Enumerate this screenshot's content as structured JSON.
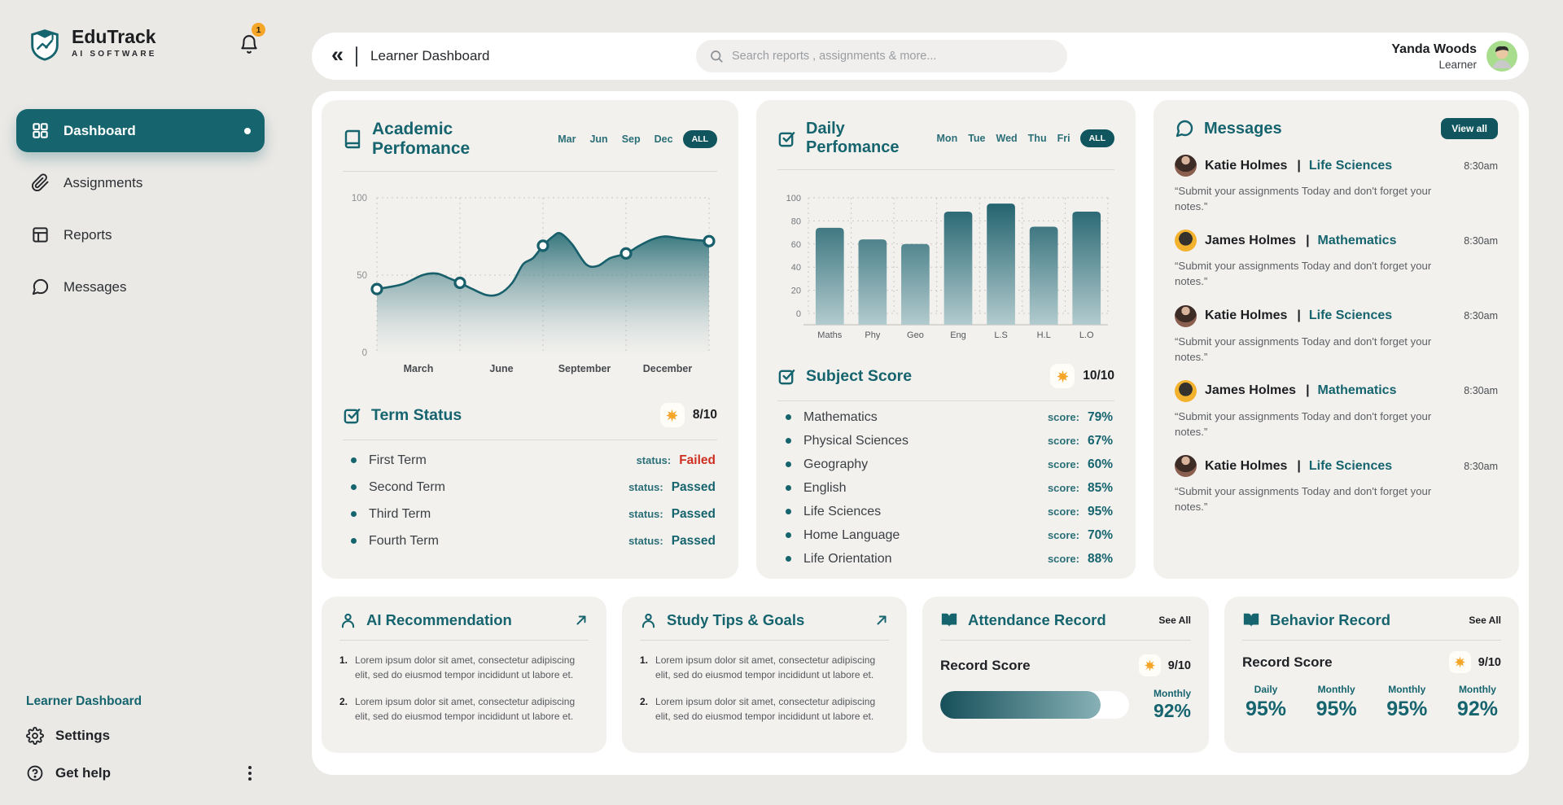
{
  "brand": {
    "name": "EduTrack",
    "tagline": "AI SOFTWARE",
    "notification_count": "1"
  },
  "sidebar": {
    "items": [
      {
        "label": "Dashboard",
        "active": true
      },
      {
        "label": "Assignments"
      },
      {
        "label": "Reports"
      },
      {
        "label": "Messages"
      }
    ],
    "footer_title": "Learner Dashboard",
    "settings_label": "Settings",
    "help_label": "Get help"
  },
  "header": {
    "title": "Learner Dashboard",
    "search_placeholder": "Search reports , assignments & more...",
    "user": {
      "name": "Yanda Woods",
      "role": "Learner"
    }
  },
  "academic": {
    "title": "Academic Perfomance",
    "filters": [
      "Mar",
      "Jun",
      "Sep",
      "Dec"
    ],
    "filter_all": "ALL"
  },
  "term_status": {
    "title": "Term Status",
    "score": "8/10",
    "status_label": "status:",
    "rows": [
      {
        "label": "First Term",
        "value": "Failed",
        "state": "failed"
      },
      {
        "label": "Second Term",
        "value": "Passed",
        "state": "passed"
      },
      {
        "label": "Third Term",
        "value": "Passed",
        "state": "passed"
      },
      {
        "label": "Fourth Term",
        "value": "Passed",
        "state": "passed"
      }
    ]
  },
  "daily": {
    "title": "Daily Perfomance",
    "filters": [
      "Mon",
      "Tue",
      "Wed",
      "Thu",
      "Fri"
    ],
    "filter_all": "ALL"
  },
  "subject_score": {
    "title": "Subject Score",
    "score": "10/10",
    "score_label": "score:",
    "rows": [
      {
        "name": "Mathematics",
        "value": "79%"
      },
      {
        "name": "Physical Sciences",
        "value": "67%"
      },
      {
        "name": "Geography",
        "value": "60%"
      },
      {
        "name": "English",
        "value": "85%"
      },
      {
        "name": "Life Sciences",
        "value": "95%"
      },
      {
        "name": "Home Language",
        "value": "70%"
      },
      {
        "name": "Life Orientation",
        "value": "88%"
      }
    ]
  },
  "messages": {
    "title": "Messages",
    "view_all_label": "View all",
    "items": [
      {
        "sender": "Katie Holmes",
        "separator": "|",
        "subject": "Life Sciences",
        "time": "8:30am",
        "body": "“Submit your assignments Today and don't forget your notes.”",
        "avatar": "katie"
      },
      {
        "sender": "James Holmes",
        "separator": "|",
        "subject": "Mathematics",
        "time": "8:30am",
        "body": "“Submit your assignments Today and don't forget your notes.”",
        "avatar": "james"
      },
      {
        "sender": "Katie Holmes",
        "separator": "|",
        "subject": "Life Sciences",
        "time": "8:30am",
        "body": "“Submit your assignments Today and don't forget your notes.”",
        "avatar": "katie"
      },
      {
        "sender": "James Holmes",
        "separator": "|",
        "subject": "Mathematics",
        "time": "8:30am",
        "body": "“Submit your assignments Today and don't forget your notes.”",
        "avatar": "james"
      },
      {
        "sender": "Katie Holmes",
        "separator": "|",
        "subject": "Life Sciences",
        "time": "8:30am",
        "body": "“Submit your assignments Today and don't forget your notes.”",
        "avatar": "katie"
      }
    ]
  },
  "ai_recommendation": {
    "title": "AI Recommendation",
    "items": [
      {
        "num": "1.",
        "text": "Lorem ipsum dolor sit amet, consectetur adipiscing elit, sed do eiusmod tempor incididunt ut labore et."
      },
      {
        "num": "2.",
        "text": "Lorem ipsum dolor sit amet, consectetur adipiscing elit, sed do eiusmod tempor incididunt ut labore et."
      }
    ]
  },
  "study_tips": {
    "title": "Study Tips & Goals",
    "items": [
      {
        "num": "1.",
        "text": "Lorem ipsum dolor sit amet, consectetur adipiscing elit, sed do eiusmod tempor incididunt ut labore et."
      },
      {
        "num": "2.",
        "text": "Lorem ipsum dolor sit amet, consectetur adipiscing elit, sed do eiusmod tempor incididunt ut labore et."
      }
    ]
  },
  "attendance": {
    "title": "Attendance Record",
    "see_all_label": "See All",
    "record_label": "Record Score",
    "score": "9/10",
    "progress_pct": 85,
    "stat": {
      "label": "Monthly",
      "value": "92%"
    }
  },
  "behavior": {
    "title": "Behavior Record",
    "see_all_label": "See All",
    "record_label": "Record Score",
    "score": "9/10",
    "stats": [
      {
        "label": "Daily",
        "value": "95%"
      },
      {
        "label": "Monthly",
        "value": "95%"
      },
      {
        "label": "Monthly",
        "value": "95%"
      },
      {
        "label": "Monthly",
        "value": "92%"
      }
    ]
  },
  "colors": {
    "teal": "#15646e",
    "teal_dark": "#11565f",
    "red": "#ce2f21",
    "orange": "#f5a528",
    "card_bg": "#f3f1ee",
    "page_bg": "#ebe9e6"
  },
  "chart_data": [
    {
      "type": "area",
      "title": "Academic Perfomance",
      "x_domain": [
        0,
        400
      ],
      "ylim": [
        0,
        100
      ],
      "y_ticks": [
        0,
        50,
        100
      ],
      "grid": "dotted",
      "legend": "none",
      "x_gridlines": [
        0,
        100,
        200,
        300,
        400
      ],
      "x_ticklabels": [
        {
          "label": "March",
          "x": 50
        },
        {
          "label": "June",
          "x": 150
        },
        {
          "label": "September",
          "x": 250
        },
        {
          "label": "December",
          "x": 350
        }
      ],
      "series": [
        {
          "name": "performance",
          "points": [
            [
              0,
              41
            ],
            [
              30,
              44
            ],
            [
              55,
              50
            ],
            [
              72,
              51
            ],
            [
              87,
              48
            ],
            [
              100,
              45
            ],
            [
              115,
              41
            ],
            [
              133,
              37
            ],
            [
              148,
              38
            ],
            [
              163,
              45
            ],
            [
              176,
              57
            ],
            [
              188,
              61
            ],
            [
              200,
              69
            ],
            [
              212,
              75
            ],
            [
              221,
              77
            ],
            [
              235,
              70
            ],
            [
              252,
              57
            ],
            [
              266,
              56
            ],
            [
              281,
              61
            ],
            [
              300,
              64
            ],
            [
              316,
              69
            ],
            [
              331,
              73
            ],
            [
              346,
              75
            ],
            [
              362,
              74
            ],
            [
              378,
              73
            ],
            [
              400,
              72
            ]
          ]
        }
      ],
      "markers": [
        [
          0,
          41
        ],
        [
          100,
          45
        ],
        [
          200,
          69
        ],
        [
          300,
          64
        ],
        [
          400,
          72
        ]
      ]
    },
    {
      "type": "bar",
      "title": "Daily Perfomance",
      "categories": [
        "Maths",
        "Phy",
        "Geo",
        "Eng",
        "L.S",
        "H.L",
        "L.O"
      ],
      "values": [
        74,
        64,
        60,
        88,
        95,
        75,
        88
      ],
      "ylim": [
        0,
        100
      ],
      "y_ticks": [
        0,
        20,
        40,
        60,
        80,
        100
      ],
      "grid": "dotted",
      "legend": "none"
    }
  ]
}
